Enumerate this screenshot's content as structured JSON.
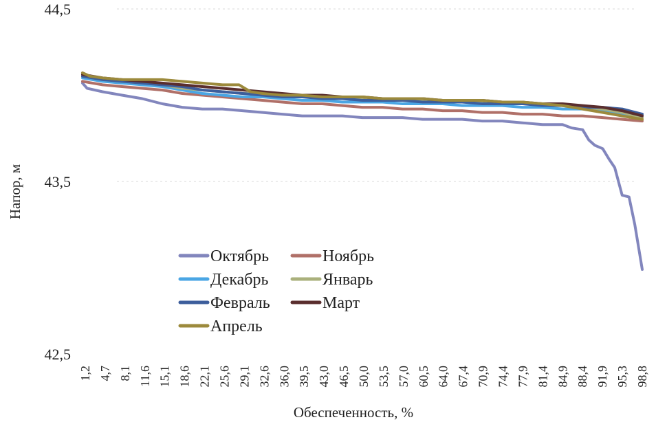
{
  "chart_data": {
    "type": "line",
    "xlabel": "Обеспеченность, %",
    "ylabel": "Напор, м",
    "ylim": [
      42.5,
      44.5
    ],
    "yticks": [
      "42,5",
      "43,5",
      "44,5"
    ],
    "xticks": [
      "1,2",
      "4,7",
      "8,1",
      "11,6",
      "15,1",
      "18,6",
      "22,1",
      "25,6",
      "29,1",
      "32,6",
      "36,0",
      "39,5",
      "43,0",
      "46,5",
      "50,0",
      "53,5",
      "57,0",
      "60,5",
      "64,0",
      "67,4",
      "70,9",
      "74,4",
      "77,9",
      "81,4",
      "84,9",
      "88,4",
      "91,9",
      "95,3",
      "98,8"
    ],
    "xlim": [
      1.2,
      98.8
    ],
    "grid": "horizontal dashed",
    "legend_position": "lower-left inside plot",
    "series": [
      {
        "name": "Октябрь",
        "color": "#8286bd",
        "x": [
          1.2,
          2.0,
          4.7,
          8.1,
          11.6,
          15.1,
          18.6,
          22.1,
          25.6,
          29.1,
          32.6,
          36.0,
          39.5,
          43.0,
          46.5,
          50.0,
          53.5,
          57.0,
          60.5,
          64.0,
          67.4,
          70.9,
          74.4,
          77.9,
          81.4,
          84.9,
          86.5,
          88.4,
          89.5,
          90.5,
          91.9,
          93.0,
          94.0,
          95.3,
          96.5,
          97.5,
          98.8
        ],
        "y": [
          44.07,
          44.04,
          44.02,
          44.0,
          43.98,
          43.95,
          43.93,
          43.92,
          43.92,
          43.91,
          43.9,
          43.89,
          43.88,
          43.88,
          43.88,
          43.87,
          43.87,
          43.87,
          43.86,
          43.86,
          43.86,
          43.85,
          43.85,
          43.84,
          43.83,
          43.83,
          43.81,
          43.8,
          43.74,
          43.71,
          43.69,
          43.63,
          43.58,
          43.42,
          43.41,
          43.25,
          42.99
        ]
      },
      {
        "name": "Ноябрь",
        "color": "#b07068",
        "x": [
          1.2,
          4.7,
          8.1,
          11.6,
          15.1,
          18.6,
          22.1,
          25.6,
          29.1,
          32.6,
          36.0,
          39.5,
          43.0,
          46.5,
          50.0,
          53.5,
          57.0,
          60.5,
          64.0,
          67.4,
          70.9,
          74.4,
          77.9,
          81.4,
          84.9,
          88.4,
          91.9,
          95.3,
          98.8
        ],
        "y": [
          44.08,
          44.06,
          44.05,
          44.04,
          44.03,
          44.01,
          44.0,
          43.99,
          43.98,
          43.97,
          43.96,
          43.95,
          43.95,
          43.94,
          43.93,
          43.93,
          43.92,
          43.92,
          43.91,
          43.91,
          43.9,
          43.9,
          43.89,
          43.89,
          43.88,
          43.88,
          43.87,
          43.86,
          43.85
        ]
      },
      {
        "name": "Декабрь",
        "color": "#4aa6e4",
        "x": [
          1.2,
          4.7,
          8.1,
          11.6,
          15.1,
          18.6,
          22.1,
          25.6,
          29.1,
          32.6,
          36.0,
          39.5,
          43.0,
          46.5,
          50.0,
          53.5,
          57.0,
          60.5,
          64.0,
          67.4,
          70.9,
          74.4,
          77.9,
          81.4,
          84.9,
          88.4,
          91.9,
          95.3,
          98.8
        ],
        "y": [
          44.1,
          44.08,
          44.07,
          44.06,
          44.05,
          44.03,
          44.01,
          44.0,
          43.99,
          43.99,
          43.98,
          43.97,
          43.97,
          43.96,
          43.96,
          43.96,
          43.95,
          43.95,
          43.95,
          43.94,
          43.94,
          43.94,
          43.93,
          43.93,
          43.92,
          43.92,
          43.91,
          43.89,
          43.87
        ]
      },
      {
        "name": "Январь",
        "color": "#aab07c",
        "x": [
          1.2,
          4.7,
          8.1,
          11.6,
          15.1,
          18.6,
          22.1,
          25.6,
          29.1,
          32.6,
          36.0,
          39.5,
          43.0,
          46.5,
          50.0,
          53.5,
          57.0,
          60.5,
          64.0,
          67.4,
          70.9,
          74.4,
          77.9,
          81.4,
          84.9,
          88.4,
          91.9,
          95.3,
          98.8
        ],
        "y": [
          44.11,
          44.09,
          44.08,
          44.07,
          44.06,
          44.04,
          44.03,
          44.02,
          44.01,
          44.01,
          44.0,
          43.99,
          43.99,
          43.98,
          43.98,
          43.98,
          43.97,
          43.97,
          43.97,
          43.96,
          43.96,
          43.96,
          43.95,
          43.95,
          43.94,
          43.93,
          43.92,
          43.9,
          43.87
        ]
      },
      {
        "name": "Февраль",
        "color": "#3d5e9c",
        "x": [
          1.2,
          4.7,
          8.1,
          11.6,
          15.1,
          18.6,
          22.1,
          25.6,
          29.1,
          32.6,
          36.0,
          39.5,
          43.0,
          46.5,
          50.0,
          53.5,
          57.0,
          60.5,
          64.0,
          67.4,
          70.9,
          74.4,
          77.9,
          81.4,
          84.9,
          88.4,
          91.9,
          95.3,
          98.8
        ],
        "y": [
          44.11,
          44.09,
          44.08,
          44.07,
          44.06,
          44.05,
          44.03,
          44.02,
          44.01,
          44.0,
          43.99,
          43.99,
          43.98,
          43.98,
          43.97,
          43.97,
          43.97,
          43.96,
          43.96,
          43.96,
          43.95,
          43.95,
          43.95,
          43.94,
          43.94,
          43.93,
          43.93,
          43.92,
          43.89
        ]
      },
      {
        "name": "Март",
        "color": "#5a2e2e",
        "x": [
          1.2,
          4.7,
          8.1,
          11.6,
          15.1,
          18.6,
          22.1,
          25.6,
          29.1,
          32.6,
          36.0,
          39.5,
          43.0,
          46.5,
          50.0,
          53.5,
          57.0,
          60.5,
          64.0,
          67.4,
          70.9,
          74.4,
          77.9,
          81.4,
          84.9,
          88.4,
          91.9,
          95.3,
          98.8
        ],
        "y": [
          44.12,
          44.1,
          44.09,
          44.08,
          44.07,
          44.06,
          44.05,
          44.04,
          44.03,
          44.02,
          44.01,
          44.0,
          44.0,
          43.99,
          43.99,
          43.98,
          43.98,
          43.98,
          43.97,
          43.97,
          43.97,
          43.96,
          43.96,
          43.95,
          43.95,
          43.94,
          43.93,
          43.91,
          43.88
        ]
      },
      {
        "name": "Апрель",
        "color": "#9c8a3c",
        "x": [
          1.2,
          2.5,
          4.7,
          8.1,
          11.6,
          15.1,
          18.6,
          22.1,
          25.6,
          28.5,
          30.5,
          32.6,
          36.0,
          39.5,
          43.0,
          46.5,
          50.0,
          53.5,
          57.0,
          60.5,
          64.0,
          67.4,
          70.9,
          74.4,
          77.9,
          81.4,
          84.9,
          88.4,
          91.9,
          95.3,
          98.8
        ],
        "y": [
          44.13,
          44.11,
          44.1,
          44.09,
          44.09,
          44.09,
          44.08,
          44.07,
          44.06,
          44.06,
          44.02,
          44.01,
          44.0,
          44.0,
          43.99,
          43.99,
          43.99,
          43.98,
          43.98,
          43.98,
          43.97,
          43.97,
          43.97,
          43.96,
          43.96,
          43.95,
          43.94,
          43.92,
          43.9,
          43.88,
          43.86
        ]
      }
    ]
  }
}
